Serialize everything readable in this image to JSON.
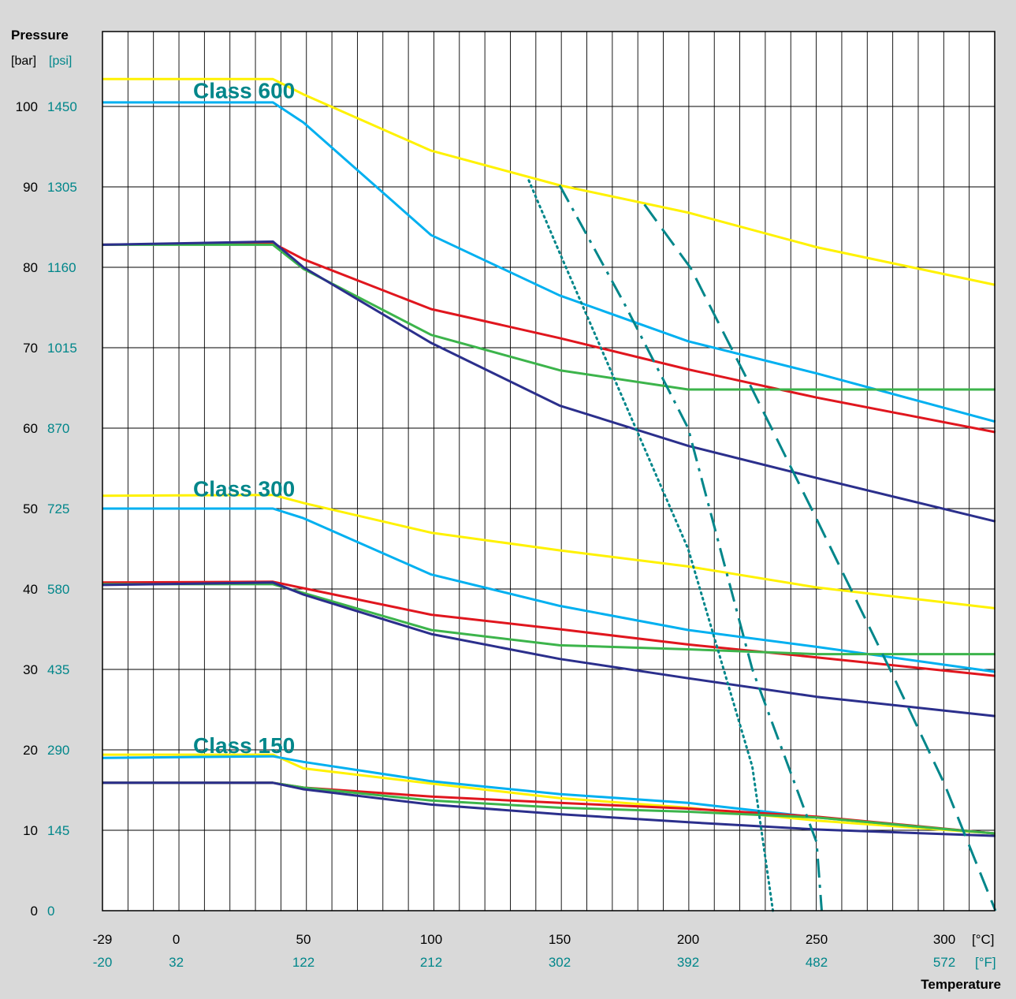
{
  "chart_data": {
    "type": "line",
    "y_axis": {
      "title": "Pressure",
      "unit_primary": "[bar]",
      "unit_secondary": "[psi]",
      "ticks_bar": [
        0,
        10,
        20,
        30,
        40,
        50,
        60,
        70,
        80,
        90,
        100
      ],
      "ticks_psi": [
        0,
        145,
        290,
        435,
        580,
        725,
        870,
        1015,
        1160,
        1305,
        1450
      ],
      "range_bar": [
        0,
        104
      ]
    },
    "x_axis": {
      "title": "Temperature",
      "unit_primary": "[°C]",
      "unit_secondary": "[°F]",
      "ticks_c": [
        -29,
        0,
        50,
        100,
        150,
        200,
        250,
        300
      ],
      "ticks_f": [
        -20,
        32,
        122,
        212,
        302,
        392,
        482,
        572
      ],
      "range_c": [
        -29,
        320
      ]
    },
    "grid": true,
    "colors": {
      "background": "#d9d9d9",
      "plot_area": "#ffffff",
      "accent": "#00868a",
      "yellow": "#fff200",
      "light_blue": "#00b0f0",
      "red": "#e0161e",
      "green": "#3cb44b",
      "navy": "#2b2f8c"
    },
    "class_labels": [
      {
        "text": "Class 600",
        "x": 50,
        "y": 102
      },
      {
        "text": "Class 300",
        "x": 50,
        "y": 52.5
      },
      {
        "text": "Class 150",
        "x": 50,
        "y": 20.6
      }
    ],
    "series": [
      {
        "group": "Class 600",
        "color": "yellow",
        "points": [
          [
            -29,
            103.4
          ],
          [
            38,
            103.4
          ],
          [
            50,
            101.5
          ],
          [
            100,
            94.5
          ],
          [
            150,
            90.2
          ],
          [
            200,
            86.8
          ],
          [
            250,
            82.5
          ],
          [
            320,
            77.8
          ]
        ]
      },
      {
        "group": "Class 600",
        "color": "light_blue",
        "points": [
          [
            -29,
            100.5
          ],
          [
            38,
            100.5
          ],
          [
            50,
            98
          ],
          [
            100,
            84
          ],
          [
            150,
            76.5
          ],
          [
            200,
            70.8
          ],
          [
            250,
            66.8
          ],
          [
            320,
            60.8
          ]
        ]
      },
      {
        "group": "Class 600",
        "color": "red",
        "points": [
          [
            -29,
            82.8
          ],
          [
            38,
            83
          ],
          [
            50,
            81
          ],
          [
            100,
            74.8
          ],
          [
            150,
            71.2
          ],
          [
            200,
            67.3
          ],
          [
            250,
            63.8
          ],
          [
            320,
            59.5
          ]
        ]
      },
      {
        "group": "Class 600",
        "color": "green",
        "points": [
          [
            -29,
            82.8
          ],
          [
            38,
            82.8
          ],
          [
            50,
            79.8
          ],
          [
            100,
            71.6
          ],
          [
            150,
            67.2
          ],
          [
            200,
            64.8
          ],
          [
            250,
            64.8
          ],
          [
            320,
            64.8
          ]
        ]
      },
      {
        "group": "Class 600",
        "color": "navy",
        "points": [
          [
            -29,
            82.8
          ],
          [
            38,
            83.2
          ],
          [
            50,
            80
          ],
          [
            100,
            70.6
          ],
          [
            150,
            62.8
          ],
          [
            200,
            57.8
          ],
          [
            250,
            53.8
          ],
          [
            320,
            48.4
          ]
        ]
      },
      {
        "group": "Class 300",
        "color": "yellow",
        "points": [
          [
            -29,
            51.6
          ],
          [
            38,
            51.7
          ],
          [
            50,
            50.7
          ],
          [
            100,
            47
          ],
          [
            150,
            44.8
          ],
          [
            200,
            42.8
          ],
          [
            250,
            40.2
          ],
          [
            320,
            37.6
          ]
        ]
      },
      {
        "group": "Class 300",
        "color": "light_blue",
        "points": [
          [
            -29,
            50
          ],
          [
            38,
            50
          ],
          [
            50,
            48.8
          ],
          [
            100,
            41.8
          ],
          [
            150,
            37.9
          ],
          [
            200,
            34.9
          ],
          [
            250,
            32.8
          ],
          [
            320,
            29.7
          ]
        ]
      },
      {
        "group": "Class 300",
        "color": "red",
        "points": [
          [
            -29,
            40.8
          ],
          [
            38,
            40.9
          ],
          [
            50,
            40.1
          ],
          [
            100,
            36.8
          ],
          [
            150,
            35
          ],
          [
            200,
            33.1
          ],
          [
            250,
            31.5
          ],
          [
            320,
            29.2
          ]
        ]
      },
      {
        "group": "Class 300",
        "color": "green",
        "points": [
          [
            -29,
            40.6
          ],
          [
            38,
            40.6
          ],
          [
            50,
            39.5
          ],
          [
            100,
            34.9
          ],
          [
            150,
            33
          ],
          [
            200,
            32.5
          ],
          [
            250,
            31.9
          ],
          [
            320,
            31.9
          ]
        ]
      },
      {
        "group": "Class 300",
        "color": "navy",
        "points": [
          [
            -29,
            40.5
          ],
          [
            38,
            40.8
          ],
          [
            50,
            39.3
          ],
          [
            100,
            34.4
          ],
          [
            150,
            31.3
          ],
          [
            200,
            28.9
          ],
          [
            250,
            26.6
          ],
          [
            320,
            24.2
          ]
        ]
      },
      {
        "group": "Class 150",
        "color": "yellow",
        "points": [
          [
            -29,
            19.4
          ],
          [
            38,
            19.4
          ],
          [
            50,
            17.7
          ],
          [
            100,
            15.8
          ],
          [
            150,
            14
          ],
          [
            200,
            12.8
          ],
          [
            250,
            11.2
          ],
          [
            320,
            9.6
          ]
        ]
      },
      {
        "group": "Class 150",
        "color": "light_blue",
        "points": [
          [
            -29,
            19
          ],
          [
            38,
            19.2
          ],
          [
            50,
            18.5
          ],
          [
            100,
            16.1
          ],
          [
            150,
            14.5
          ],
          [
            200,
            13.4
          ],
          [
            250,
            11.6
          ],
          [
            320,
            9.6
          ]
        ]
      },
      {
        "group": "Class 150",
        "color": "red",
        "points": [
          [
            -29,
            15.9
          ],
          [
            38,
            15.9
          ],
          [
            50,
            15.3
          ],
          [
            100,
            14.2
          ],
          [
            150,
            13.4
          ],
          [
            200,
            12.7
          ],
          [
            250,
            11.7
          ],
          [
            320,
            9.6
          ]
        ]
      },
      {
        "group": "Class 150",
        "color": "green",
        "points": [
          [
            -29,
            15.9
          ],
          [
            38,
            15.9
          ],
          [
            50,
            15.3
          ],
          [
            100,
            13.7
          ],
          [
            150,
            12.8
          ],
          [
            200,
            12.3
          ],
          [
            250,
            11.6
          ],
          [
            320,
            9.6
          ]
        ]
      },
      {
        "group": "Class 150",
        "color": "navy",
        "points": [
          [
            -29,
            15.9
          ],
          [
            38,
            15.9
          ],
          [
            50,
            15.1
          ],
          [
            100,
            13.2
          ],
          [
            150,
            12
          ],
          [
            200,
            11
          ],
          [
            250,
            10.1
          ],
          [
            320,
            9.3
          ]
        ]
      },
      {
        "color": "accent",
        "style": "dotted",
        "points": [
          [
            138,
            90.8
          ],
          [
            150,
            81.8
          ],
          [
            200,
            45
          ],
          [
            225,
            17.9
          ],
          [
            233,
            0
          ]
        ]
      },
      {
        "color": "accent",
        "style": "dashdot",
        "points": [
          [
            150,
            90.2
          ],
          [
            175,
            75.6
          ],
          [
            200,
            60
          ],
          [
            225,
            30
          ],
          [
            250,
            8.5
          ],
          [
            252,
            0
          ]
        ]
      },
      {
        "color": "accent",
        "style": "dashed",
        "points": [
          [
            183,
            87.8
          ],
          [
            201,
            79.9
          ],
          [
            225,
            64.8
          ],
          [
            250,
            48.7
          ],
          [
            280,
            29.2
          ],
          [
            300,
            15.8
          ],
          [
            320,
            0
          ]
        ]
      }
    ]
  }
}
